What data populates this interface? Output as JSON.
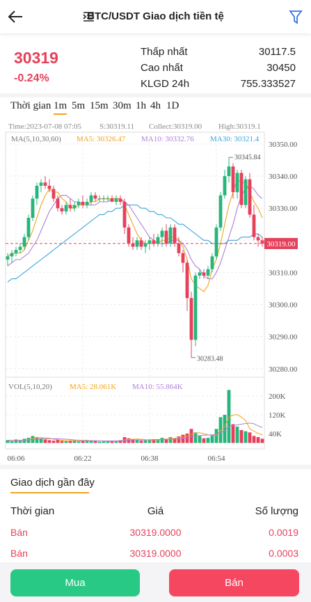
{
  "header": {
    "title": "BTC/USDT Giao dịch tiền tệ"
  },
  "ticker": {
    "price": "30319",
    "change": "-0.24%",
    "stats": [
      {
        "label": "Thấp nhất",
        "value": "30117.5"
      },
      {
        "label": "Cao nhất",
        "value": "30450"
      },
      {
        "label": "KLGD 24h",
        "value": "755.333527"
      }
    ]
  },
  "intervals": {
    "items": [
      "Thời gian",
      "1m",
      "5m",
      "15m",
      "30m",
      "1h",
      "4h",
      "1D"
    ],
    "active": 1
  },
  "chart_data": {
    "type": "candlestick",
    "info": [
      "Time:2023-07-08 07:05",
      "S:30319.11",
      "Collect:30319.00",
      "High:30319.1"
    ],
    "legend_title": "MA(5,10,30,60)",
    "up_color": "#27b57c",
    "down_color": "#e5415b",
    "grid": true,
    "categories": [
      null,
      null,
      "06:06",
      null,
      null,
      null,
      null,
      null,
      null,
      null,
      null,
      null,
      null,
      null,
      null,
      null,
      null,
      null,
      "06:22",
      null,
      null,
      null,
      null,
      null,
      null,
      null,
      null,
      null,
      null,
      null,
      null,
      null,
      null,
      null,
      "06:38",
      null,
      null,
      null,
      null,
      null,
      null,
      null,
      null,
      null,
      null,
      null,
      null,
      null,
      null,
      null,
      "06:54",
      null,
      null,
      null,
      null,
      null,
      null,
      null,
      null,
      null,
      null,
      null
    ],
    "candles": [
      [
        30314,
        30316,
        30312,
        30315
      ],
      [
        30315,
        30317,
        30313,
        30316
      ],
      [
        30316,
        30318,
        30315,
        30317
      ],
      [
        30317,
        30319,
        30316,
        30318
      ],
      [
        30318,
        30322,
        30317,
        30321
      ],
      [
        30321,
        30328,
        30320,
        30327
      ],
      [
        30327,
        30334,
        30326,
        30333
      ],
      [
        30333,
        30338,
        30331,
        30337
      ],
      [
        30337,
        30339,
        30335,
        30338
      ],
      [
        30338,
        30340,
        30336,
        30337
      ],
      [
        30337,
        30339,
        30335,
        30336
      ],
      [
        30336,
        30337,
        30332,
        30333
      ],
      [
        30333,
        30334,
        30329,
        30330
      ],
      [
        30330,
        30331,
        30328,
        30329
      ],
      [
        30329,
        30332,
        30328,
        30331
      ],
      [
        30331,
        30333,
        30329,
        30330
      ],
      [
        30330,
        30332,
        30329,
        30331
      ],
      [
        30331,
        30333,
        30330,
        30332
      ],
      [
        30332,
        30334,
        30330,
        30331
      ],
      [
        30331,
        30333,
        30330,
        30332
      ],
      [
        30332,
        30335,
        30331,
        30334
      ],
      [
        30334,
        30335,
        30332,
        30333
      ],
      [
        30333,
        30334,
        30332,
        30333
      ],
      [
        30333,
        30334,
        30332,
        30333
      ],
      [
        30333,
        30334,
        30332,
        30333
      ],
      [
        30333,
        30334,
        30332,
        30332
      ],
      [
        30332,
        30334,
        30331,
        30333
      ],
      [
        30333,
        30334,
        30331,
        30332
      ],
      [
        30332,
        30333,
        30322,
        30324
      ],
      [
        30324,
        30325,
        30318,
        30319
      ],
      [
        30319,
        30321,
        30317,
        30318
      ],
      [
        30318,
        30321,
        30317,
        30320
      ],
      [
        30320,
        30321,
        30317,
        30318
      ],
      [
        30318,
        30320,
        30316,
        30319
      ],
      [
        30319,
        30321,
        30317,
        30320
      ],
      [
        30320,
        30322,
        30318,
        30319
      ],
      [
        30319,
        30322,
        30318,
        30321
      ],
      [
        30321,
        30324,
        30318,
        30323
      ],
      [
        30323,
        30325,
        30318,
        30319
      ],
      [
        30319,
        30325,
        30318,
        30324
      ],
      [
        30324,
        30325,
        30318,
        30319
      ],
      [
        30319,
        30321,
        30315,
        30316
      ],
      [
        30316,
        30317,
        30310,
        30313
      ],
      [
        30313,
        30314,
        30298,
        30302
      ],
      [
        30302,
        30304,
        30283.48,
        30289
      ],
      [
        30289,
        30310,
        30287,
        30309
      ],
      [
        30309,
        30311,
        30308,
        30310
      ],
      [
        30310,
        30311,
        30308,
        30309
      ],
      [
        30309,
        30312,
        30308,
        30311
      ],
      [
        30311,
        30316,
        30310,
        30315
      ],
      [
        30315,
        30325,
        30314,
        30324
      ],
      [
        30324,
        30335,
        30323,
        30334
      ],
      [
        30334,
        30342,
        30333,
        30340
      ],
      [
        30340,
        30345.84,
        30338,
        30343
      ],
      [
        30343,
        30344,
        30333,
        30335
      ],
      [
        30335,
        30342,
        30333,
        30341
      ],
      [
        30341,
        30342,
        30330,
        30331
      ],
      [
        30331,
        30340,
        30330,
        30339
      ],
      [
        30339,
        30341,
        30327,
        30328
      ],
      [
        30328,
        30331,
        30320,
        30321
      ],
      [
        30321,
        30322,
        30318,
        30320
      ],
      [
        30320,
        30321,
        30318,
        30319
      ]
    ],
    "high_label": {
      "value": 30345.84,
      "label": "30345.84"
    },
    "low_label": {
      "value": 30283.48,
      "label": "30283.48"
    },
    "last_price": {
      "value": 30319,
      "label": "30319.00",
      "color": "#e5415b"
    },
    "ylim": [
      30278,
      30354
    ],
    "yticks": [
      {
        "value": 30350,
        "label": "30350.00"
      },
      {
        "value": 30340,
        "label": "30340.00"
      },
      {
        "value": 30330,
        "label": "30330.00"
      },
      {
        "value": 30320,
        "label": "30320.00"
      },
      {
        "value": 30310,
        "label": "30310.00"
      },
      {
        "value": 30300,
        "label": "30300.00"
      },
      {
        "value": 30290,
        "label": "30290.00"
      },
      {
        "value": 30280,
        "label": "30280.00"
      }
    ],
    "series": [
      {
        "name": "MA5: 30326.47",
        "color": "#f0a31e",
        "values": [
          30315,
          30316,
          30316,
          30316,
          30317,
          30320,
          30323,
          30327,
          30331,
          30334,
          30336,
          30335,
          30335,
          30333,
          30332,
          30330,
          30330,
          30331,
          30331,
          30331,
          30332,
          30332,
          30333,
          30333,
          30333,
          30333,
          30333,
          30333,
          30331,
          30328,
          30325,
          30322,
          30320,
          30319,
          30319,
          30319,
          30319,
          30320,
          30320,
          30321,
          30321,
          30320,
          30318,
          30314,
          30308,
          30306,
          30305,
          30304,
          30306,
          30311,
          30314,
          30319,
          30325,
          30331,
          30335,
          30339,
          30338,
          30338,
          30335,
          30332,
          30330,
          30327
        ]
      },
      {
        "name": "MA10: 30332.76",
        "color": "#b07fd6",
        "values": [
          30312,
          30313,
          30314,
          30314,
          30315,
          30316,
          30318,
          30320,
          30323,
          30326,
          30329,
          30331,
          30333,
          30334,
          30334,
          30333,
          30332,
          30332,
          30331,
          30331,
          30331,
          30331,
          30332,
          30332,
          30332,
          30333,
          30333,
          30333,
          30332,
          30331,
          30329,
          30327,
          30325,
          30323,
          30321,
          30320,
          30319,
          30319,
          30319,
          30320,
          30320,
          30320,
          30319,
          30317,
          30314,
          30312,
          30311,
          30309,
          30308,
          30308,
          30310,
          30313,
          30317,
          30321,
          30325,
          30330,
          30334,
          30336,
          30337,
          30336,
          30334,
          30333
        ]
      },
      {
        "name": "MA30: 30321.4",
        "color": "#38a4dc",
        "values": [
          30307,
          30308,
          30308,
          30309,
          30310,
          30311,
          30312,
          30313,
          30314,
          30315,
          30316,
          30317,
          30318,
          30319,
          30320,
          30321,
          30322,
          30323,
          30324,
          30325,
          30326,
          30327,
          30328,
          30328,
          30329,
          30329,
          30330,
          30330,
          30331,
          30331,
          30331,
          30331,
          30330,
          30330,
          30329,
          30329,
          30328,
          30328,
          30327,
          30327,
          30326,
          30325,
          30325,
          30324,
          30323,
          30322,
          30321,
          30320,
          30320,
          30319,
          30319,
          30319,
          30319,
          30320,
          30320,
          30320,
          30321,
          30321,
          30321,
          30322,
          30322,
          30321
        ]
      }
    ],
    "volume": {
      "label": "VOL(5,10,20)",
      "values": [
        12000,
        8000,
        15000,
        10000,
        18000,
        22000,
        30000,
        25000,
        20000,
        15000,
        12000,
        10000,
        14000,
        9000,
        8000,
        11000,
        10000,
        7000,
        9000,
        12000,
        10000,
        8000,
        6000,
        7000,
        9000,
        8000,
        10000,
        12000,
        25000,
        20000,
        15000,
        12000,
        10000,
        11000,
        14000,
        16000,
        13000,
        22000,
        18000,
        25000,
        20000,
        28000,
        35000,
        40000,
        60000,
        45000,
        30000,
        20000,
        22000,
        35000,
        60000,
        110000,
        120000,
        226000,
        80000,
        70000,
        55000,
        50000,
        45000,
        30000,
        25000,
        18000
      ],
      "ylim": [
        0,
        270000
      ],
      "yticks": [
        {
          "value": 200000,
          "label": "200K"
        },
        {
          "value": 120000,
          "label": "120K"
        },
        {
          "value": 40000,
          "label": "40K"
        }
      ],
      "series": [
        {
          "name": "MA5: 28.061K",
          "color": "#f0a31e",
          "values": [
            12000,
            10000,
            11000,
            11000,
            12000,
            15000,
            19000,
            21000,
            23000,
            22000,
            20000,
            16000,
            14000,
            12000,
            10000,
            10000,
            10000,
            10000,
            9000,
            10000,
            10000,
            9000,
            9000,
            9000,
            8000,
            8000,
            8000,
            9000,
            13000,
            15000,
            16000,
            17000,
            16000,
            14000,
            12000,
            13000,
            13000,
            15000,
            16000,
            19000,
            20000,
            23000,
            25000,
            29000,
            37000,
            42000,
            44000,
            39000,
            35000,
            32000,
            34000,
            53000,
            69000,
            110000,
            119000,
            121000,
            110000,
            96000,
            60000,
            50000,
            41000,
            34000
          ]
        },
        {
          "name": "MA10: 55.864K",
          "color": "#b07fd6",
          "values": [
            12000,
            11000,
            11000,
            11000,
            12000,
            13000,
            16000,
            17000,
            18000,
            18000,
            18000,
            18000,
            18000,
            17000,
            16000,
            15000,
            13000,
            12000,
            11000,
            11000,
            10000,
            10000,
            9000,
            9000,
            9000,
            9000,
            9000,
            9000,
            11000,
            12000,
            13000,
            13000,
            13000,
            13000,
            14000,
            14000,
            15000,
            15000,
            15000,
            16000,
            16000,
            17000,
            20000,
            22000,
            27000,
            30000,
            32000,
            33000,
            34000,
            35000,
            37000,
            43000,
            52000,
            71000,
            74000,
            77000,
            80000,
            83000,
            85000,
            82000,
            73000,
            66000
          ]
        }
      ]
    }
  },
  "trades": {
    "title": "Giao dịch gần đây",
    "columns": [
      "Thời gian",
      "Giá",
      "Số lượng"
    ],
    "rows": [
      [
        "Bán",
        "30319.0000",
        "0.0019"
      ],
      [
        "Bán",
        "30319.0000",
        "0.0003"
      ]
    ]
  },
  "buttons": [
    "Mua",
    "Bán"
  ]
}
